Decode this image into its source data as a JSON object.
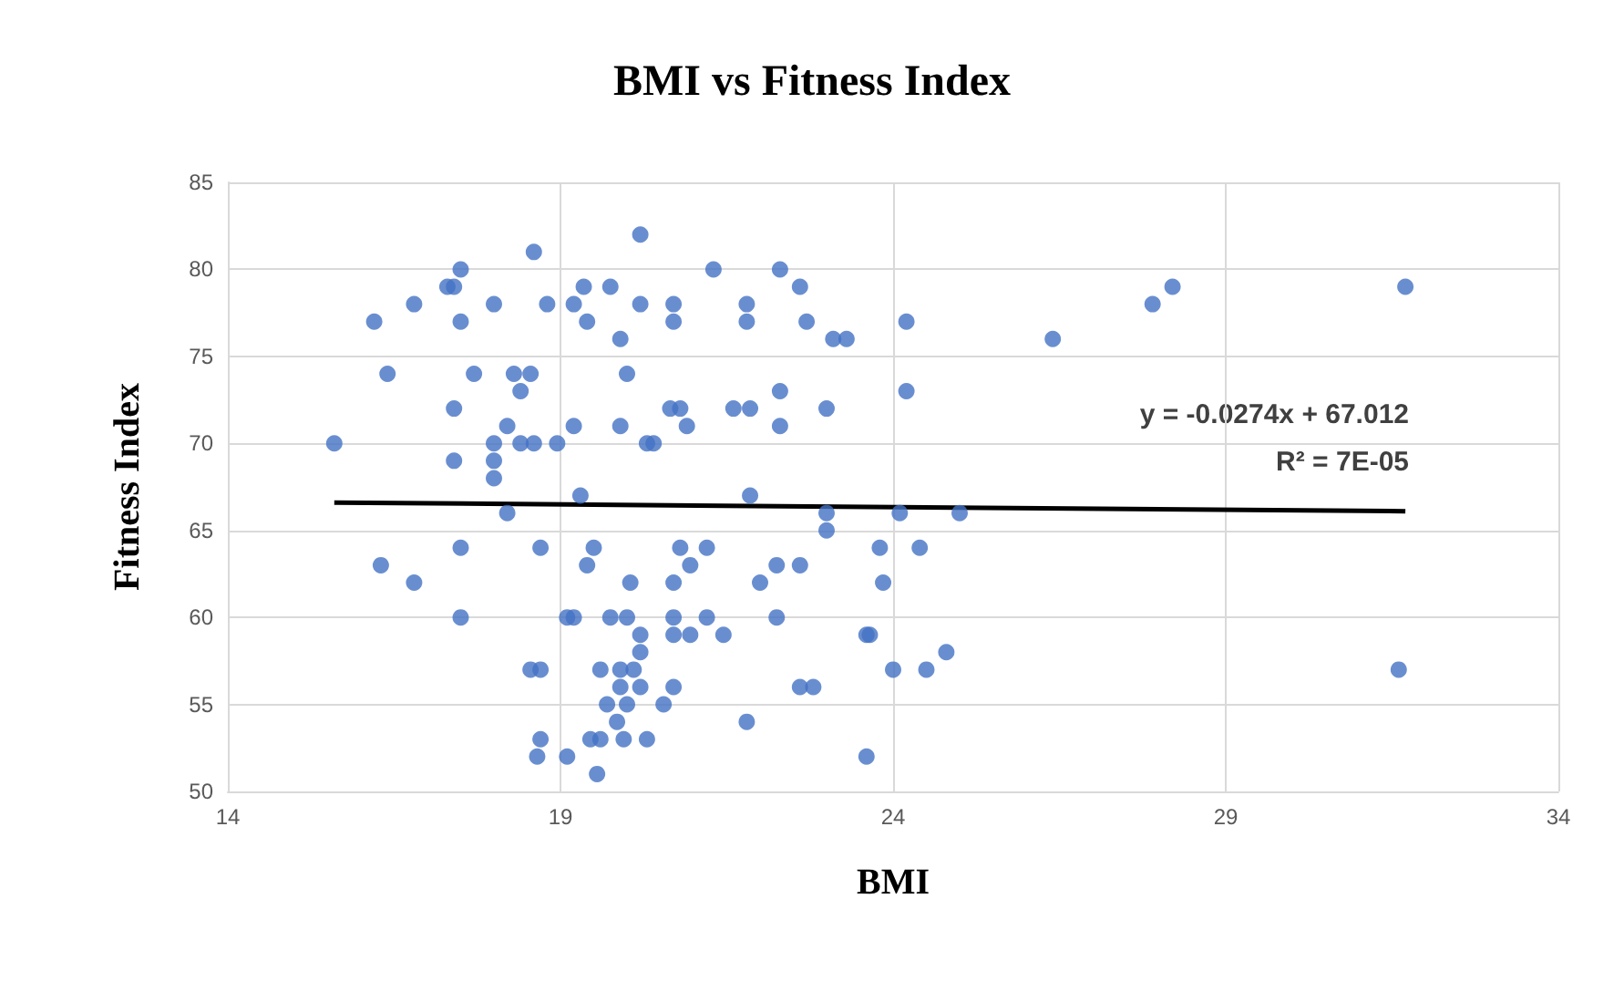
{
  "chart_data": {
    "type": "scatter",
    "title": "BMI vs Fitness Index",
    "xlabel": "BMI",
    "ylabel": "Fitness Index",
    "xlim": [
      14,
      34
    ],
    "xticks": [
      14,
      19,
      24,
      29,
      34
    ],
    "ylim": [
      50,
      85
    ],
    "yticks": [
      50,
      55,
      60,
      65,
      70,
      75,
      80,
      85
    ],
    "grid": true,
    "marker": "circle",
    "annotations": [
      "y = -0.0274x + 67.012",
      "R² = 7E-05"
    ],
    "series": [
      {
        "color": "#4472c4",
        "x": [
          20.2,
          21.3,
          22.3,
          22.6,
          19.35,
          19.75,
          18.8,
          19.2,
          20.2,
          20.7,
          21.8,
          19.4,
          20.7,
          21.8,
          22.7,
          23.1,
          23.3,
          19.9,
          20.0,
          22.3,
          20.65,
          20.8,
          21.6,
          21.85,
          23.0,
          19.2,
          19.9,
          20.9,
          22.3,
          18.95,
          20.3,
          20.4,
          19.3,
          21.85,
          23.0,
          23.0,
          19.5,
          19.4,
          20.8,
          21.2,
          20.95,
          20.05,
          20.7,
          22.0,
          22.25,
          22.6,
          19.1,
          19.2,
          19.75,
          20.0,
          20.7,
          21.2,
          22.25,
          20.2,
          20.7,
          20.95,
          21.45,
          23.6,
          20.2,
          18.7,
          19.6,
          19.9,
          20.1,
          20.2,
          20.7,
          22.6,
          22.8,
          19.9,
          19.7,
          20.55,
          20.0,
          19.85,
          21.8,
          19.45,
          19.6,
          19.95,
          20.3,
          18.7,
          19.1,
          19.55,
          23.6,
          18.6,
          17.5,
          17.3,
          17.4,
          16.8,
          18.0,
          16.2,
          17.5,
          16.4,
          17.7,
          18.3,
          18.55,
          18.4,
          17.4,
          18.2,
          15.6,
          18.0,
          18.4,
          18.6,
          17.4,
          18.0,
          18.0,
          18.2,
          17.5,
          18.7,
          16.3,
          16.8,
          17.5,
          18.55,
          18.65,
          24.2,
          26.4,
          24.2,
          24.1,
          25.0,
          23.8,
          24.4,
          23.85,
          23.65,
          24.8,
          24.0,
          24.5,
          27.9,
          28.2,
          31.7,
          31.6
        ],
        "values": [
          82,
          80,
          80,
          79,
          79,
          79,
          78,
          78,
          78,
          78,
          78,
          77,
          77,
          77,
          77,
          76,
          76,
          76,
          74,
          73,
          72,
          72,
          72,
          72,
          72,
          71,
          71,
          71,
          71,
          70,
          70,
          70,
          67,
          67,
          66,
          65,
          64,
          63,
          64,
          64,
          63,
          62,
          62,
          62,
          63,
          63,
          60,
          60,
          60,
          60,
          60,
          60,
          60,
          59,
          59,
          59,
          59,
          59,
          58,
          57,
          57,
          57,
          57,
          56,
          56,
          56,
          56,
          56,
          55,
          55,
          55,
          54,
          54,
          53,
          53,
          53,
          53,
          53,
          52,
          51,
          52,
          81,
          80,
          79,
          79,
          78,
          78,
          77,
          77,
          74,
          74,
          74,
          74,
          73,
          72,
          71,
          70,
          70,
          70,
          70,
          69,
          69,
          68,
          66,
          64,
          64,
          63,
          62,
          60,
          57,
          52,
          77,
          76,
          73,
          66,
          66,
          64,
          64,
          62,
          59,
          58,
          57,
          57,
          78,
          79,
          79,
          57
        ]
      },
      {
        "type": "line",
        "color": "#000000",
        "x": [
          15.6,
          31.7
        ],
        "values": [
          66.6,
          66.1
        ],
        "marker": "none"
      }
    ]
  }
}
